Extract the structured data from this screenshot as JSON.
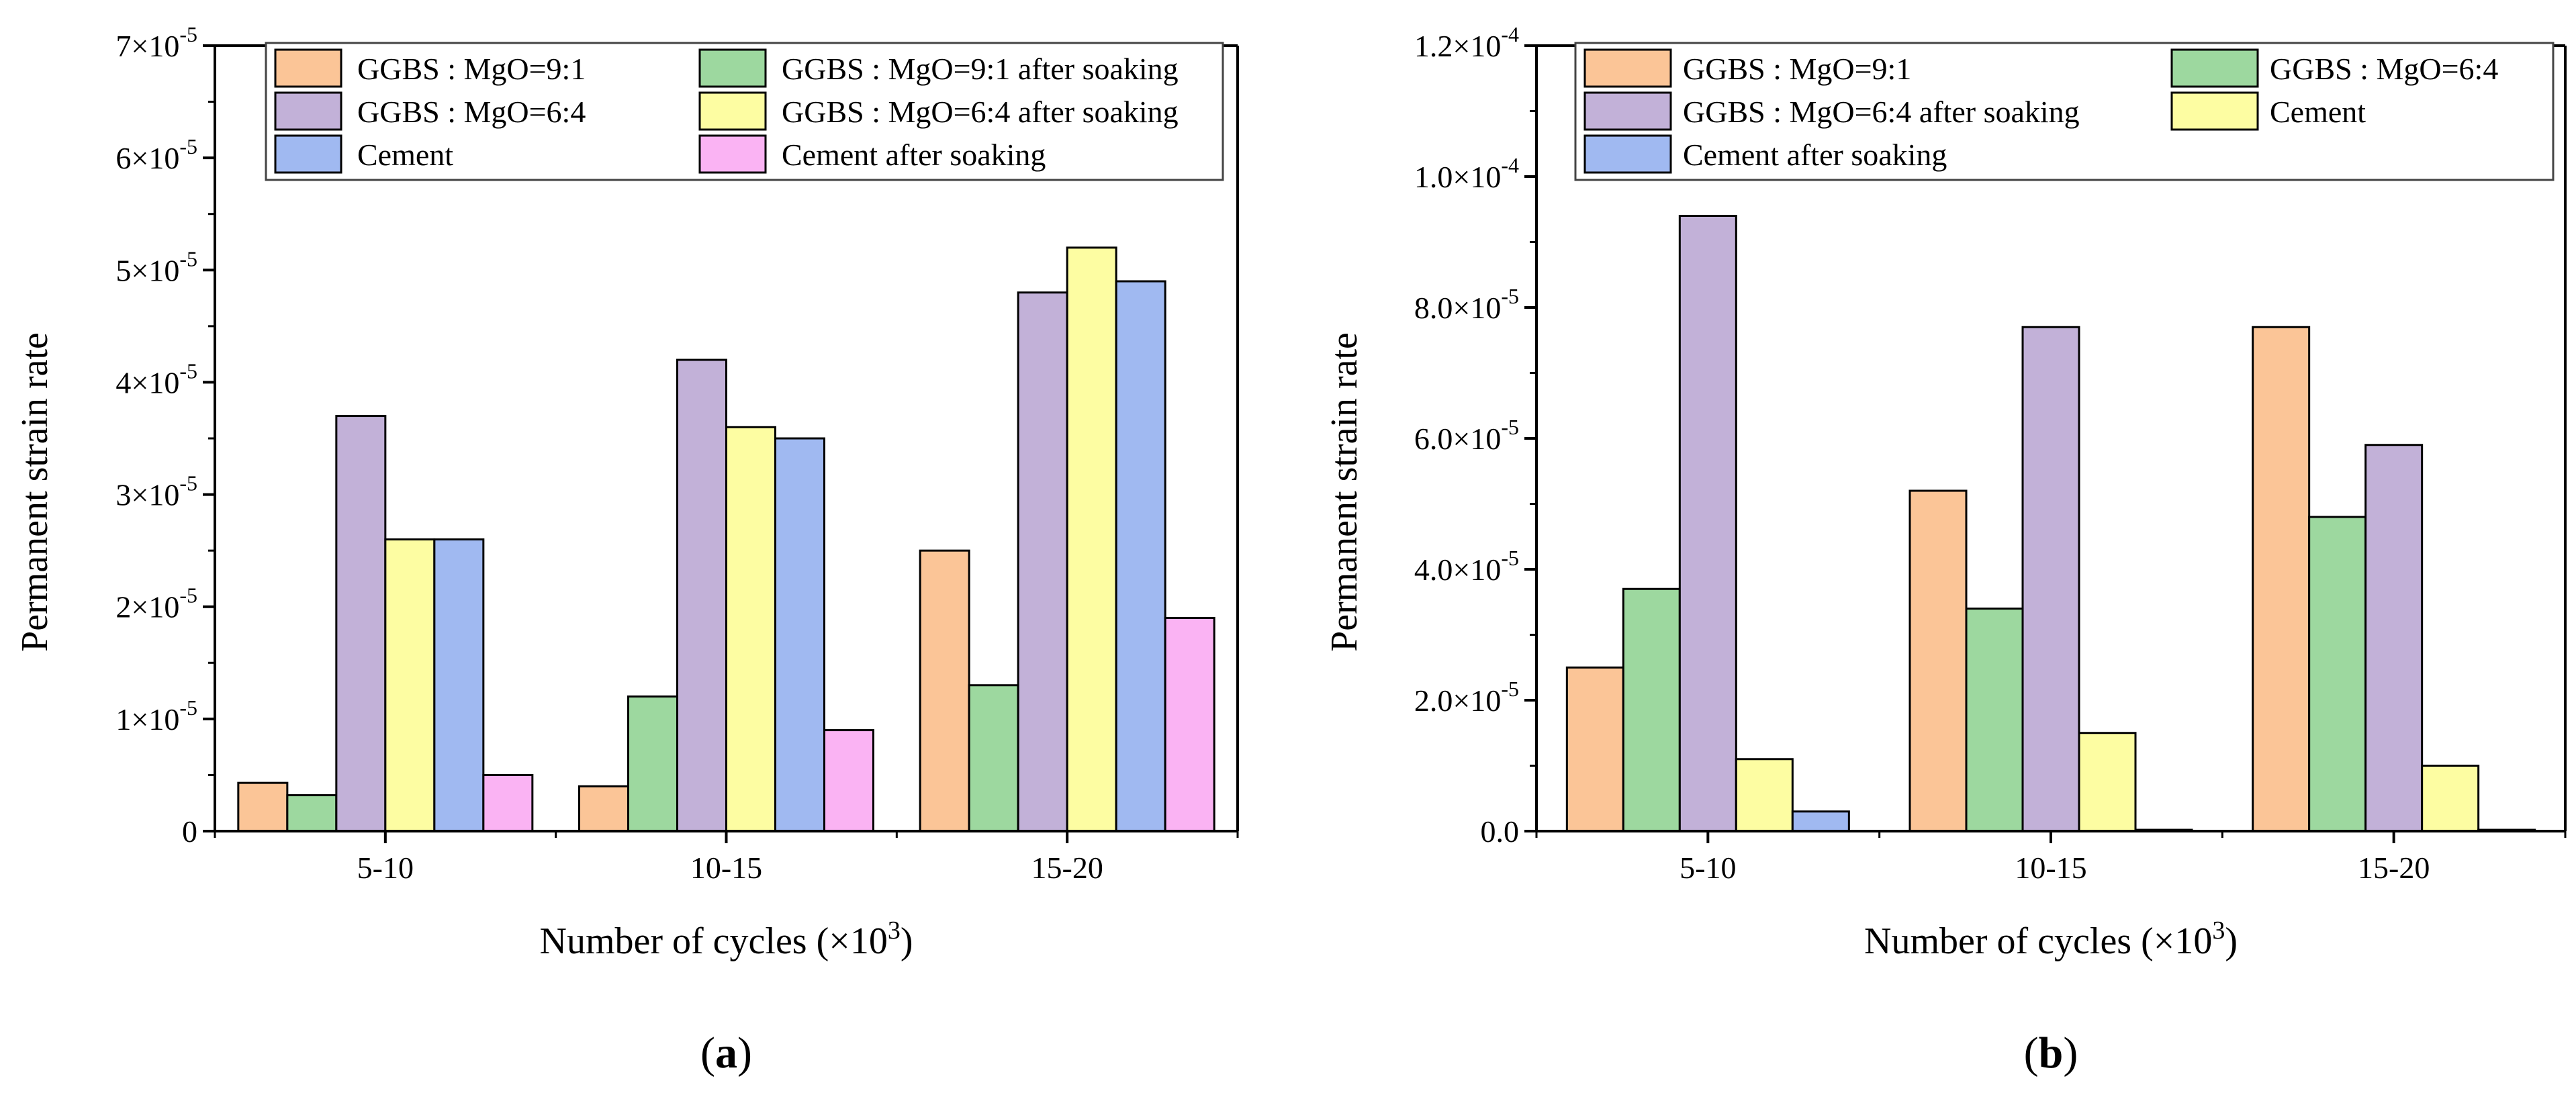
{
  "chart_data": [
    {
      "type": "bar",
      "panel_label": "a",
      "title": "",
      "xlabel": "Number of cycles (×10",
      "xlabel_sup": "3",
      "xlabel_tail": ")",
      "ylabel": "Permanent strain rate",
      "categories": [
        "5-10",
        "10-15",
        "15-20"
      ],
      "ylim": [
        0,
        7e-05
      ],
      "yticks": [
        0,
        1e-05,
        2e-05,
        3e-05,
        4e-05,
        5e-05,
        6e-05,
        7e-05
      ],
      "ytick_labels": [
        {
          "m": "0",
          "e": ""
        },
        {
          "m": "1×10",
          "e": "-5"
        },
        {
          "m": "2×10",
          "e": "-5"
        },
        {
          "m": "3×10",
          "e": "-5"
        },
        {
          "m": "4×10",
          "e": "-5"
        },
        {
          "m": "5×10",
          "e": "-5"
        },
        {
          "m": "6×10",
          "e": "-5"
        },
        {
          "m": "7×10",
          "e": "-5"
        }
      ],
      "legend_position": "top",
      "series": [
        {
          "name": "GGBS : MgO=9:1",
          "color": "#FBC597",
          "values": [
            4.3e-06,
            4e-06,
            2.5e-05
          ]
        },
        {
          "name": "GGBS : MgO=9:1 after soaking",
          "color": "#9DD89F",
          "values": [
            3.2e-06,
            1.2e-05,
            1.3e-05
          ]
        },
        {
          "name": "GGBS : MgO=6:4",
          "color": "#C2B1D8",
          "values": [
            3.7e-05,
            4.2e-05,
            4.8e-05
          ]
        },
        {
          "name": "GGBS : MgO=6:4 after soaking",
          "color": "#FDFDA2",
          "values": [
            2.6e-05,
            3.6e-05,
            5.2e-05
          ]
        },
        {
          "name": "Cement",
          "color": "#A0B9F1",
          "values": [
            2.6e-05,
            3.5e-05,
            4.9e-05
          ]
        },
        {
          "name": "Cement after soaking",
          "color": "#FAB3F3",
          "values": [
            5e-06,
            9e-06,
            1.9e-05
          ]
        }
      ]
    },
    {
      "type": "bar",
      "panel_label": "b",
      "title": "",
      "xlabel": "Number of cycles (×10",
      "xlabel_sup": "3",
      "xlabel_tail": ")",
      "ylabel": "Permanent strain rate",
      "categories": [
        "5-10",
        "10-15",
        "15-20"
      ],
      "ylim": [
        0,
        0.00012
      ],
      "yticks": [
        0,
        2e-05,
        4e-05,
        6e-05,
        8e-05,
        0.0001,
        0.00012
      ],
      "ytick_labels": [
        {
          "m": "0.0",
          "e": ""
        },
        {
          "m": "2.0×10",
          "e": "-5"
        },
        {
          "m": "4.0×10",
          "e": "-5"
        },
        {
          "m": "6.0×10",
          "e": "-5"
        },
        {
          "m": "8.0×10",
          "e": "-5"
        },
        {
          "m": "1.0×10",
          "e": "-4"
        },
        {
          "m": "1.2×10",
          "e": "-4"
        }
      ],
      "legend_position": "top",
      "series": [
        {
          "name": "GGBS : MgO=9:1",
          "color": "#FBC597",
          "values": [
            2.5e-05,
            5.2e-05,
            7.7e-05
          ]
        },
        {
          "name": "GGBS : MgO=6:4",
          "color": "#9DD89F",
          "values": [
            3.7e-05,
            3.4e-05,
            4.8e-05
          ]
        },
        {
          "name": "GGBS : MgO=6:4 after soaking",
          "color": "#C2B1D8",
          "values": [
            9.4e-05,
            7.7e-05,
            5.9e-05
          ]
        },
        {
          "name": "Cement",
          "color": "#FDFDA2",
          "values": [
            1.1e-05,
            1.5e-05,
            1e-05
          ]
        },
        {
          "name": "Cement after soaking",
          "color": "#A0B9F1",
          "values": [
            3e-06,
            2e-07,
            2e-07
          ]
        }
      ]
    }
  ]
}
